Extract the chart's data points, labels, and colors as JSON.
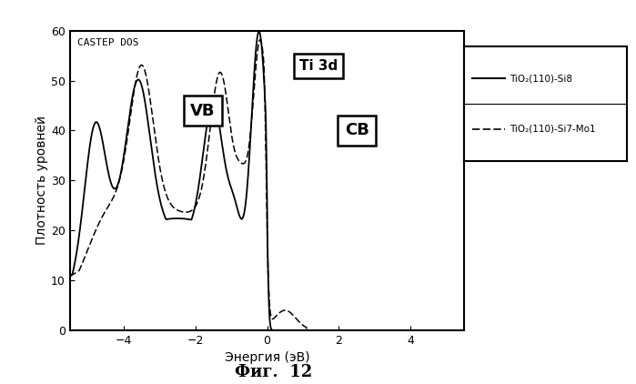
{
  "title": "CASTEP DOS",
  "xlabel": "Энергия (эВ)",
  "ylabel": "Плотность уровней",
  "caption": "Фиг.  12",
  "xlim": [
    -5.5,
    5.5
  ],
  "ylim": [
    0,
    60
  ],
  "xticks": [
    -4,
    -2,
    0,
    2,
    4
  ],
  "yticks": [
    0,
    10,
    20,
    30,
    40,
    50,
    60
  ],
  "legend1": "TiO₂(110)-Si8",
  "legend2": "TiO₂(110)-Si7-Mo1",
  "label_VB": "VB",
  "label_Ti3d": "Ti 3d",
  "label_CB": "CB",
  "bg_color": "#ffffff",
  "plot_bg_color": "#ffffff"
}
